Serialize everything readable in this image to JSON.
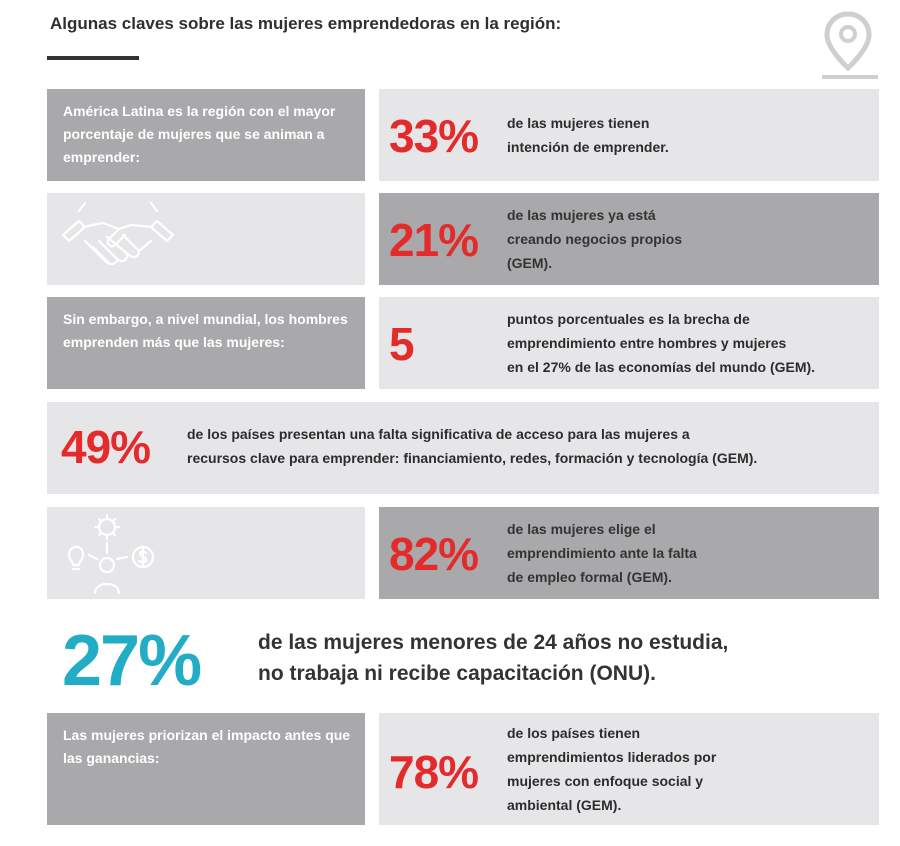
{
  "header": {
    "title": "Algunas claves sobre las mujeres emprendedoras en la región:",
    "icon": "location-pin-icon"
  },
  "rows": {
    "r1": {
      "left_text": "América Latina es la región con el mayor porcentaje de mujeres que se animan a emprender:",
      "stat": "33%",
      "desc_lines": [
        "de las mujeres tienen",
        "intención de emprender."
      ]
    },
    "r2": {
      "icon": "handshake-icon",
      "stat": "21%",
      "desc_lines": [
        "de las mujeres ya está",
        "creando negocios propios",
        "(GEM)."
      ]
    },
    "r3": {
      "left_text": "Sin embargo, a nivel mundial, los hombres emprenden más que las mujeres:",
      "stat": "5",
      "desc_lines": [
        "puntos porcentuales es la brecha de",
        "emprendimiento entre hombres y mujeres",
        "en el 27% de las economías del mundo (GEM)."
      ]
    },
    "r4": {
      "stat": "49%",
      "desc_lines": [
        "de los países presentan una falta significativa de acceso para las mujeres a",
        "recursos clave para emprender: financiamiento, redes, formación y tecnología (GEM)."
      ]
    },
    "r5": {
      "icon": "ideas-money-person-icon",
      "stat": "82%",
      "desc_lines": [
        "de las mujeres elige el",
        "emprendimiento ante la falta",
        "de empleo formal (GEM)."
      ]
    },
    "r6": {
      "stat": "27%",
      "desc_lines": [
        "de las mujeres menores de 24 años no estudia,",
        "no trabaja ni recibe capacitación (ONU)."
      ]
    },
    "r7": {
      "left_text": "Las mujeres priorizan el impacto antes que las ganancias:",
      "stat": "78%",
      "desc_lines": [
        "de los países tienen",
        "emprendimientos liderados por",
        "mujeres con enfoque social y",
        "ambiental (GEM)."
      ]
    }
  },
  "colors": {
    "red": "#e42b2b",
    "teal": "#22acc5",
    "dark_gray": "#a9a9ab",
    "light_gray": "#e6e6e9"
  }
}
